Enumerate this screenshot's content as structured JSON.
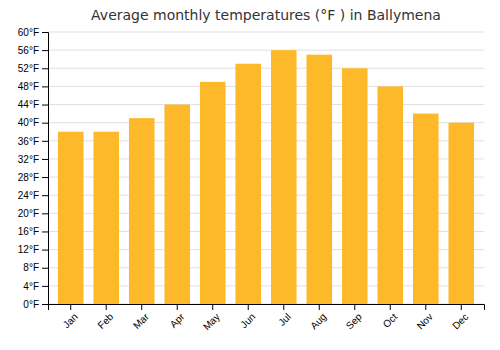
{
  "chart_data": {
    "type": "bar",
    "title": "Average monthly temperatures (°F ) in Ballymena",
    "categories": [
      "Jan",
      "Feb",
      "Mar",
      "Apr",
      "May",
      "Jun",
      "Jul",
      "Aug",
      "Sep",
      "Oct",
      "Nov",
      "Dec"
    ],
    "values": [
      38,
      38,
      41,
      44,
      49,
      53,
      56,
      55,
      52,
      48,
      42,
      40
    ],
    "color": "#FDB92A",
    "ylim": [
      0,
      60
    ],
    "yticks": [
      {
        "value": 0,
        "label": "0°F"
      },
      {
        "value": 4,
        "label": "4°F"
      },
      {
        "value": 8,
        "label": "8°F"
      },
      {
        "value": 12,
        "label": "12°F"
      },
      {
        "value": 16,
        "label": "16°F"
      },
      {
        "value": 20,
        "label": "20°F"
      },
      {
        "value": 24,
        "label": "24°F"
      },
      {
        "value": 28,
        "label": "28°F"
      },
      {
        "value": 32,
        "label": "32°F"
      },
      {
        "value": 36,
        "label": "36°F"
      },
      {
        "value": 40,
        "label": "40°F"
      },
      {
        "value": 44,
        "label": "44°F"
      },
      {
        "value": 48,
        "label": "48°F"
      },
      {
        "value": 52,
        "label": "52°F"
      },
      {
        "value": 56,
        "label": "56°F"
      },
      {
        "value": 60,
        "label": "60°F"
      }
    ],
    "grid": true
  }
}
